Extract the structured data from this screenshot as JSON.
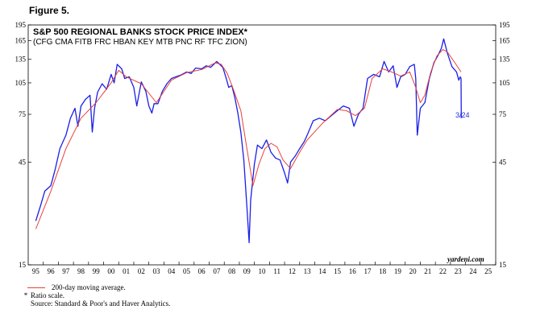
{
  "figure_label": "Figure 5.",
  "footer": {
    "legend_line": "200-day moving average.",
    "note_marker": "*",
    "note": "Ratio scale.",
    "source": "Source: Standard & Poor's and Haver Analytics."
  },
  "colors": {
    "index": "#1a1fe6",
    "ma": "#e8413a",
    "axis": "#000000"
  },
  "chart_data": {
    "type": "line",
    "title": "S&P 500 REGIONAL BANKS STOCK PRICE INDEX*",
    "subtitle": "(CFG CMA FITB FRC HBAN KEY MTB PNC RF TFC ZION)",
    "watermark": "yardeni.com",
    "annotation": "3/24",
    "y_scale": "log",
    "ylim": [
      15,
      195
    ],
    "y_ticks": [
      15,
      45,
      75,
      105,
      135,
      165,
      195
    ],
    "xlim": [
      1994.5,
      2025.5
    ],
    "x_tick_labels": [
      "95",
      "96",
      "97",
      "98",
      "99",
      "00",
      "01",
      "02",
      "03",
      "04",
      "05",
      "06",
      "07",
      "08",
      "09",
      "10",
      "11",
      "12",
      "13",
      "14",
      "15",
      "16",
      "17",
      "18",
      "19",
      "20",
      "21",
      "22",
      "23",
      "24",
      "25"
    ],
    "grid": false,
    "series": [
      {
        "name": "",
        "x": [
          1995.0,
          1995.3,
          1995.6,
          1996.0,
          1996.3,
          1996.6,
          1997.0,
          1997.3,
          1997.6,
          1997.8,
          1998.0,
          1998.3,
          1998.6,
          1998.75,
          1998.9,
          1999.1,
          1999.4,
          1999.7,
          2000.0,
          2000.2,
          2000.4,
          2000.7,
          2000.9,
          2001.2,
          2001.5,
          2001.7,
          2002.0,
          2002.3,
          2002.5,
          2002.7,
          2002.85,
          2003.1,
          2003.4,
          2003.7,
          2004.0,
          2004.3,
          2004.6,
          2005.0,
          2005.3,
          2005.6,
          2006.0,
          2006.3,
          2006.6,
          2007.0,
          2007.2,
          2007.4,
          2007.6,
          2007.8,
          2008.0,
          2008.2,
          2008.4,
          2008.6,
          2008.8,
          2009.0,
          2009.15,
          2009.25,
          2009.5,
          2009.7,
          2010.0,
          2010.3,
          2010.6,
          2010.9,
          2011.2,
          2011.5,
          2011.7,
          2011.9,
          2012.2,
          2012.5,
          2012.8,
          2013.0,
          2013.4,
          2013.8,
          2014.2,
          2014.6,
          2015.0,
          2015.4,
          2015.8,
          2016.1,
          2016.4,
          2016.7,
          2017.0,
          2017.4,
          2017.8,
          2018.1,
          2018.4,
          2018.7,
          2018.95,
          2019.2,
          2019.5,
          2019.8,
          2020.1,
          2020.2,
          2020.3,
          2020.5,
          2020.8,
          2021.1,
          2021.4,
          2021.7,
          2021.9,
          2022.05,
          2022.3,
          2022.6,
          2022.9,
          2023.05,
          2023.15,
          2023.2,
          2023.22
        ],
        "values": [
          24,
          28,
          33,
          35,
          42,
          52,
          60,
          72,
          80,
          66,
          82,
          88,
          92,
          62,
          80,
          95,
          104,
          98,
          115,
          105,
          128,
          122,
          110,
          112,
          100,
          82,
          106,
          96,
          82,
          76,
          84,
          84,
          96,
          104,
          110,
          112,
          114,
          118,
          116,
          123,
          122,
          126,
          124,
          132,
          128,
          124,
          112,
          100,
          102,
          90,
          76,
          62,
          46,
          28,
          19,
          30,
          44,
          54,
          52,
          57,
          50,
          47,
          46,
          40,
          36,
          45,
          48,
          52,
          56,
          60,
          70,
          72,
          70,
          74,
          78,
          82,
          80,
          66,
          75,
          80,
          110,
          115,
          112,
          132,
          118,
          126,
          100,
          112,
          115,
          125,
          128,
          110,
          60,
          80,
          85,
          110,
          130,
          142,
          152,
          168,
          144,
          125,
          118,
          108,
          112,
          110,
          72
        ]
      },
      {
        "name": "200-day moving average.",
        "x": [
          1995.0,
          1996.0,
          1997.0,
          1998.0,
          1999.0,
          2000.0,
          2000.5,
          2001.0,
          2002.0,
          2003.0,
          2004.0,
          2005.0,
          2006.0,
          2006.9,
          2007.3,
          2007.7,
          2008.1,
          2008.6,
          2009.0,
          2009.4,
          2009.8,
          2010.2,
          2010.6,
          2011.0,
          2011.4,
          2011.9,
          2012.5,
          2013.0,
          2014.0,
          2015.0,
          2015.6,
          2016.2,
          2016.8,
          2017.3,
          2018.0,
          2018.6,
          2019.2,
          2019.8,
          2020.2,
          2020.5,
          2020.8,
          2021.2,
          2021.6,
          2022.0,
          2022.3,
          2022.8,
          2023.2
        ],
        "values": [
          22,
          33,
          52,
          72,
          85,
          105,
          120,
          112,
          104,
          85,
          108,
          117,
          121,
          130,
          128,
          116,
          98,
          78,
          52,
          35,
          44,
          52,
          55,
          53,
          46,
          42,
          50,
          57,
          68,
          79,
          78,
          74,
          80,
          110,
          122,
          118,
          113,
          118,
          100,
          85,
          92,
          118,
          140,
          150,
          146,
          130,
          118
        ]
      }
    ]
  }
}
